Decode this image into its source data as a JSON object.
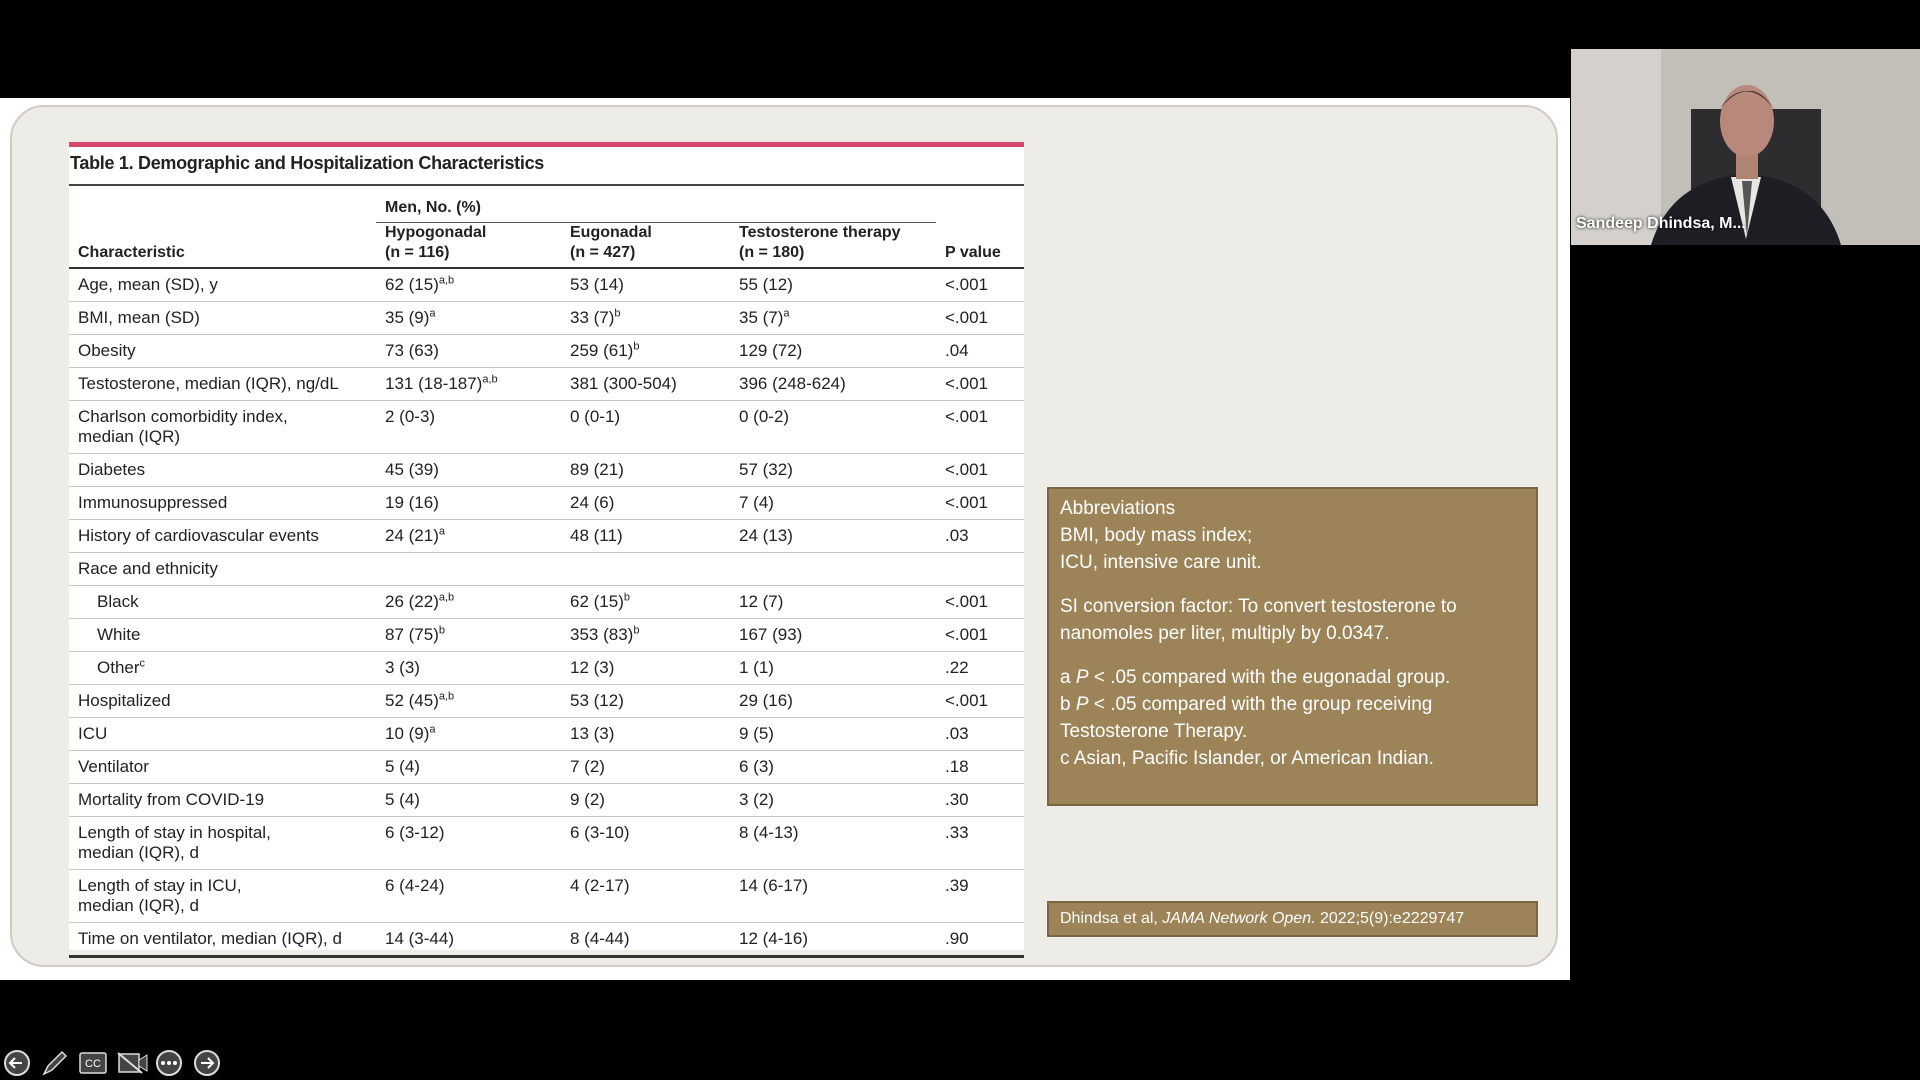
{
  "table": {
    "title": "Table 1. Demographic and Hospitalization Characteristics",
    "header": {
      "characteristic": "Characteristic",
      "group": "Men, No. (%)",
      "columns": [
        {
          "name": "Hypogonadal",
          "n": "(n = 116)"
        },
        {
          "name": "Eugonadal",
          "n": "(n = 427)"
        },
        {
          "name": "Testosterone therapy",
          "n": "(n = 180)"
        }
      ],
      "p": "P value"
    },
    "rows": [
      {
        "label": "Age, mean (SD), y",
        "values": [
          {
            "text": "62 (15)",
            "sup": "a,b"
          },
          "53 (14)",
          "55 (12)"
        ],
        "p": "<.001"
      },
      {
        "label": "BMI, mean (SD)",
        "values": [
          {
            "text": "35 (9)",
            "sup": "a"
          },
          {
            "text": "33 (7)",
            "sup": "b"
          },
          {
            "text": "35 (7)",
            "sup": "a"
          }
        ],
        "p": "<.001"
      },
      {
        "label": "Obesity",
        "values": [
          "73 (63)",
          {
            "text": "259 (61)",
            "sup": "b"
          },
          "129 (72)"
        ],
        "p": ".04"
      },
      {
        "label": "Testosterone, median (IQR), ng/dL",
        "values": [
          {
            "text": "131 (18-187)",
            "sup": "a,b"
          },
          "381 (300-504)",
          "396 (248-624)"
        ],
        "p": "<.001"
      },
      {
        "label": "Charlson comorbidity index,\nmedian (IQR)",
        "values": [
          "2 (0-3)",
          "0 (0-1)",
          "0 (0-2)"
        ],
        "p": "<.001"
      },
      {
        "label": "Diabetes",
        "values": [
          "45 (39)",
          "89 (21)",
          "57 (32)"
        ],
        "p": "<.001"
      },
      {
        "label": "Immunosuppressed",
        "values": [
          "19 (16)",
          "24 (6)",
          "7 (4)"
        ],
        "p": "<.001"
      },
      {
        "label": "History of cardiovascular events",
        "values": [
          {
            "text": "24 (21)",
            "sup": "a"
          },
          "48 (11)",
          "24 (13)"
        ],
        "p": ".03"
      },
      {
        "section": "Race and ethnicity",
        "rows": [
          {
            "label": "Black",
            "values": [
              {
                "text": "26 (22)",
                "sup": "a,b"
              },
              {
                "text": "62 (15)",
                "sup": "b"
              },
              "12 (7)"
            ],
            "p": "<.001"
          },
          {
            "label": "White",
            "values": [
              {
                "text": "87 (75)",
                "sup": "b"
              },
              {
                "text": "353 (83)",
                "sup": "b"
              },
              "167 (93)"
            ],
            "p": "<.001"
          },
          {
            "label": {
              "text": "Other",
              "sup": "c"
            },
            "values": [
              "3 (3)",
              "12 (3)",
              "1 (1)"
            ],
            "p": ".22"
          }
        ]
      },
      {
        "label": "Hospitalized",
        "values": [
          {
            "text": "52 (45)",
            "sup": "a,b"
          },
          "53 (12)",
          "29 (16)"
        ],
        "p": "<.001"
      },
      {
        "label": "ICU",
        "values": [
          {
            "text": "10 (9)",
            "sup": "a"
          },
          "13 (3)",
          "9 (5)"
        ],
        "p": ".03"
      },
      {
        "label": "Ventilator",
        "values": [
          "5 (4)",
          "7 (2)",
          "6 (3)"
        ],
        "p": ".18"
      },
      {
        "label": "Mortality from COVID-19",
        "values": [
          "5 (4)",
          "9 (2)",
          "3 (2)"
        ],
        "p": ".30"
      },
      {
        "label": "Length of stay in hospital,\nmedian (IQR), d",
        "values": [
          "6 (3-12)",
          "6 (3-10)",
          "8 (4-13)"
        ],
        "p": ".33"
      },
      {
        "label": "Length of stay in ICU,\nmedian (IQR), d",
        "values": [
          "6 (4-24)",
          "4 (2-17)",
          "14 (6-17)"
        ],
        "p": ".39"
      },
      {
        "label": "Time on ventilator, median (IQR), d",
        "values": [
          "14 (3-44)",
          "8 (4-44)",
          "12 (4-16)"
        ],
        "p": ".90"
      }
    ]
  },
  "notes": {
    "title": "Abbreviations",
    "items": [
      "BMI, body mass index;",
      "ICU, intensive care unit."
    ],
    "conversion": "SI conversion factor: To convert testosterone to nanomoles per liter, multiply by 0.0347.",
    "footnotes": [
      {
        "mark": "a",
        "stat": "P",
        "text": "< .05 compared with the eugonadal group."
      },
      {
        "mark": "b",
        "stat": "P",
        "text": "< .05 compared with the group receiving Testosterone Therapy."
      },
      {
        "mark": "c",
        "text": "Asian, Pacific Islander, or American Indian."
      }
    ]
  },
  "citation": {
    "authors": "Dhindsa et al,",
    "journal": "JAMA Network Open.",
    "ref": "2022;5(9):e2229747"
  },
  "participant": {
    "name": "Sandeep Dhindsa, M..."
  }
}
